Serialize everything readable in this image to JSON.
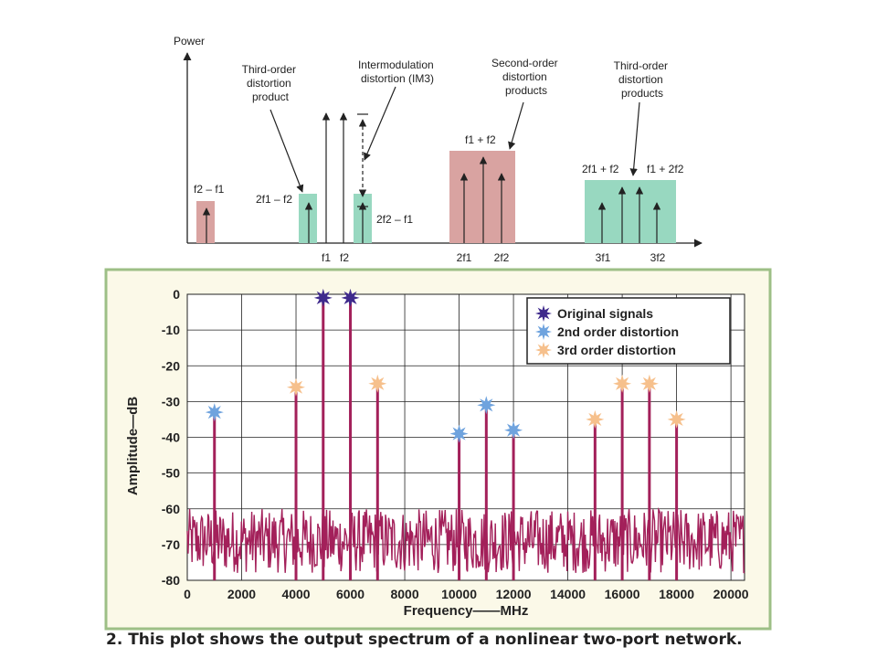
{
  "diagram": {
    "y_axis_label": "Power",
    "annotations": {
      "third_order_product": [
        "Third-order",
        "distortion",
        "product"
      ],
      "intermod": [
        "Intermodulation",
        "distortion (IM3)"
      ],
      "second_order_products": [
        "Second-order",
        "distortion",
        "products"
      ],
      "third_order_products": [
        "Third-order",
        "distortion",
        "products"
      ]
    },
    "labels": {
      "f2_minus_f1": "f2 – f1",
      "2f1_minus_f2": "2f1 – f2",
      "2f2_minus_f1": "2f2 – f1",
      "f1_plus_f2": "f1 + f2",
      "2f1_plus_f2": "2f1 + f2",
      "f1_plus_2f2": "f1 + 2f2"
    },
    "ticks": [
      "f1",
      "f2",
      "2f1",
      "2f2",
      "3f1",
      "3f2"
    ],
    "colors": {
      "second_order": "#d9a3a1",
      "third_order": "#98d8c0"
    }
  },
  "chart_data": {
    "type": "line",
    "title": "",
    "xlabel": "Frequency——MHz",
    "ylabel": "Amplitude—dB",
    "xlim": [
      0,
      20500
    ],
    "ylim": [
      -80,
      0
    ],
    "x_ticks": [
      0,
      2000,
      4000,
      6000,
      8000,
      10000,
      12000,
      14000,
      16000,
      18000,
      20000
    ],
    "y_ticks": [
      0,
      -10,
      -20,
      -30,
      -40,
      -50,
      -60,
      -70,
      -80
    ],
    "grid": true,
    "noise_floor_db": [
      -80,
      -60
    ],
    "legend_position": "top-right",
    "series": [
      {
        "name": "Original signals",
        "color": "#3f2a8c",
        "x": [
          5000,
          6000
        ],
        "y": [
          -1,
          -1
        ]
      },
      {
        "name": "2nd order distortion",
        "color": "#6fa3de",
        "x": [
          1000,
          10000,
          11000,
          12000
        ],
        "y": [
          -33,
          -39,
          -31,
          -38
        ]
      },
      {
        "name": "3rd order distortion",
        "color": "#f6c08c",
        "x": [
          4000,
          7000,
          15000,
          16000,
          17000,
          18000
        ],
        "y": [
          -26,
          -25,
          -35,
          -25,
          -25,
          -35
        ]
      }
    ]
  },
  "caption": "2. This plot shows the output spectrum of a nonlinear two-port network."
}
